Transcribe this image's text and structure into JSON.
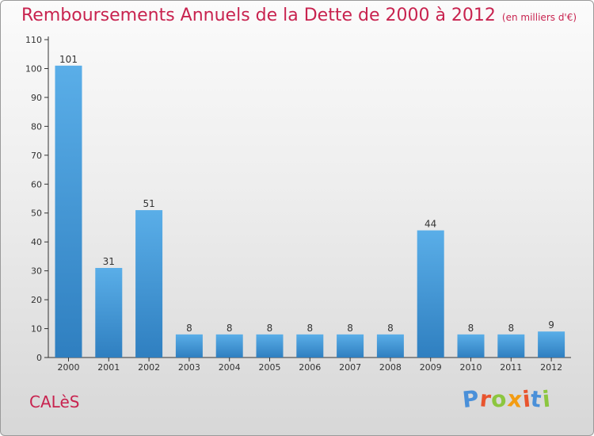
{
  "title": "Remboursements Annuels de la Dette de 2000 à 2012",
  "unit_note": "(en milliers d'€)",
  "town": "CALèS",
  "logo": {
    "text": "Proxiti",
    "letter_colors": [
      "#4a90d9",
      "#e8542e",
      "#8cc63f",
      "#f39c12",
      "#e8542e",
      "#4a90d9",
      "#8cc63f"
    ]
  },
  "colors": {
    "title": "#c8234f",
    "bar_top": "#5aaee8",
    "bar_bottom": "#2f7fc0"
  },
  "chart_data": {
    "type": "bar",
    "title": "Remboursements Annuels de la Dette de 2000 à 2012",
    "xlabel": "",
    "ylabel": "",
    "ylim": [
      0,
      110
    ],
    "yticks": [
      0,
      10,
      20,
      30,
      40,
      50,
      60,
      70,
      80,
      90,
      100,
      110
    ],
    "grid": false,
    "categories": [
      "2000",
      "2001",
      "2002",
      "2003",
      "2004",
      "2005",
      "2006",
      "2007",
      "2008",
      "2009",
      "2010",
      "2011",
      "2012"
    ],
    "values": [
      101,
      31,
      51,
      8,
      8,
      8,
      8,
      8,
      8,
      44,
      8,
      8,
      9
    ]
  }
}
